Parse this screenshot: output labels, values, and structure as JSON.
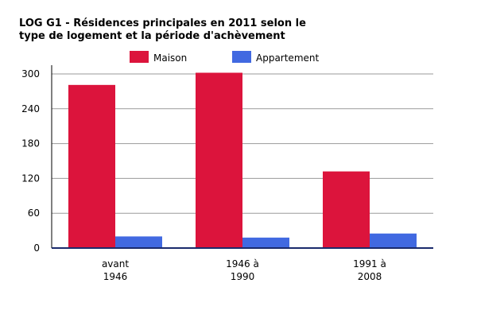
{
  "chart_data": {
    "type": "bar",
    "title_lines": [
      "LOG G1 - Résidences principales en 2011 selon le",
      "type de logement et la période d'achèvement"
    ],
    "categories": [
      [
        "avant",
        "1946"
      ],
      [
        "1946 à",
        "1990"
      ],
      [
        "1991 à",
        "2008"
      ]
    ],
    "series": [
      {
        "name": "Maison",
        "color": "#dc143c",
        "values": [
          281,
          302,
          132
        ]
      },
      {
        "name": "Appartement",
        "color": "#4169e1",
        "values": [
          20,
          18,
          25
        ]
      }
    ],
    "y_ticks": [
      0,
      60,
      120,
      180,
      240,
      300
    ],
    "ylim": [
      0,
      300
    ],
    "grid": true,
    "legend_position": "top"
  }
}
